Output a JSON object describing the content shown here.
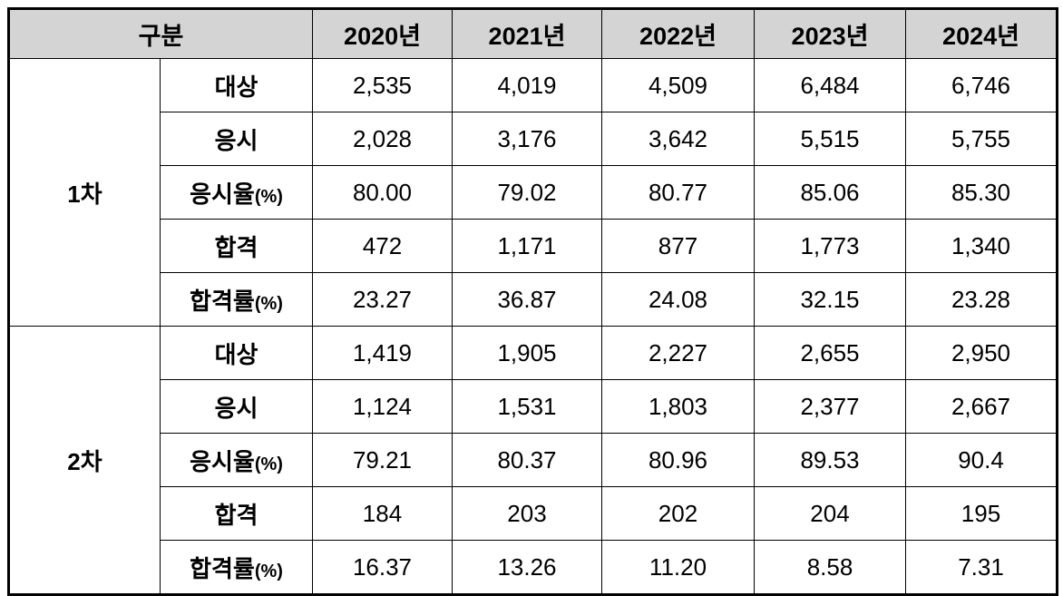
{
  "table": {
    "header": {
      "group_label": "구분",
      "years": [
        "2020년",
        "2021년",
        "2022년",
        "2023년",
        "2024년"
      ]
    },
    "sections": [
      {
        "name": "1차",
        "rows": [
          {
            "label": "대상",
            "suffix": "",
            "values": [
              "2,535",
              "4,019",
              "4,509",
              "6,484",
              "6,746"
            ]
          },
          {
            "label": "응시",
            "suffix": "",
            "values": [
              "2,028",
              "3,176",
              "3,642",
              "5,515",
              "5,755"
            ]
          },
          {
            "label": "응시율",
            "suffix": "(%)",
            "values": [
              "80.00",
              "79.02",
              "80.77",
              "85.06",
              "85.30"
            ]
          },
          {
            "label": "합격",
            "suffix": "",
            "values": [
              "472",
              "1,171",
              "877",
              "1,773",
              "1,340"
            ]
          },
          {
            "label": "합격률",
            "suffix": "(%)",
            "values": [
              "23.27",
              "36.87",
              "24.08",
              "32.15",
              "23.28"
            ]
          }
        ]
      },
      {
        "name": "2차",
        "rows": [
          {
            "label": "대상",
            "suffix": "",
            "values": [
              "1,419",
              "1,905",
              "2,227",
              "2,655",
              "2,950"
            ]
          },
          {
            "label": "응시",
            "suffix": "",
            "values": [
              "1,124",
              "1,531",
              "1,803",
              "2,377",
              "2,667"
            ]
          },
          {
            "label": "응시율",
            "suffix": "(%)",
            "values": [
              "79.21",
              "80.37",
              "80.96",
              "89.53",
              "90.4"
            ]
          },
          {
            "label": "합격",
            "suffix": "",
            "values": [
              "184",
              "203",
              "202",
              "204",
              "195"
            ]
          },
          {
            "label": "합격률",
            "suffix": "(%)",
            "values": [
              "16.37",
              "13.26",
              "11.20",
              "8.58",
              "7.31"
            ]
          }
        ]
      }
    ],
    "colors": {
      "header_bg": "#d4d4d4",
      "border": "#000000",
      "text": "#000000"
    }
  },
  "chart_data": {
    "type": "table",
    "title": "",
    "years": [
      2020,
      2021,
      2022,
      2023,
      2024
    ],
    "sections": [
      {
        "name": "1차",
        "rows": [
          {
            "label": "대상",
            "values": [
              2535,
              4019,
              4509,
              6484,
              6746
            ]
          },
          {
            "label": "응시",
            "values": [
              2028,
              3176,
              3642,
              5515,
              5755
            ]
          },
          {
            "label": "응시율(%)",
            "values": [
              80.0,
              79.02,
              80.77,
              85.06,
              85.3
            ]
          },
          {
            "label": "합격",
            "values": [
              472,
              1171,
              877,
              1773,
              1340
            ]
          },
          {
            "label": "합격률(%)",
            "values": [
              23.27,
              36.87,
              24.08,
              32.15,
              23.28
            ]
          }
        ]
      },
      {
        "name": "2차",
        "rows": [
          {
            "label": "대상",
            "values": [
              1419,
              1905,
              2227,
              2655,
              2950
            ]
          },
          {
            "label": "응시",
            "values": [
              1124,
              1531,
              1803,
              2377,
              2667
            ]
          },
          {
            "label": "응시율(%)",
            "values": [
              79.21,
              80.37,
              80.96,
              89.53,
              90.4
            ]
          },
          {
            "label": "합격",
            "values": [
              184,
              203,
              202,
              204,
              195
            ]
          },
          {
            "label": "합격률(%)",
            "values": [
              16.37,
              13.26,
              11.2,
              8.58,
              7.31
            ]
          }
        ]
      }
    ]
  }
}
